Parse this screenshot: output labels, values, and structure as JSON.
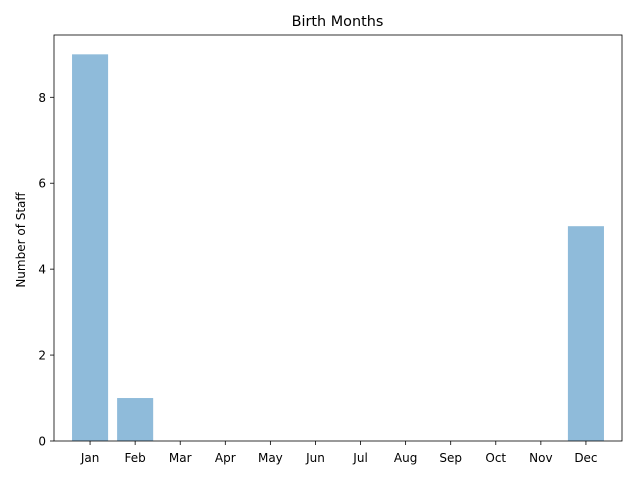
{
  "chart_data": {
    "type": "bar",
    "title": "Birth Months",
    "xlabel": "",
    "ylabel": "Number of Staff",
    "categories": [
      "Jan",
      "Feb",
      "Mar",
      "Apr",
      "May",
      "Jun",
      "Jul",
      "Aug",
      "Sep",
      "Oct",
      "Nov",
      "Dec"
    ],
    "values": [
      9,
      1,
      0,
      0,
      0,
      0,
      0,
      0,
      0,
      0,
      0,
      5
    ],
    "ylim": [
      0,
      9.45
    ],
    "yticks": [
      0,
      2,
      4,
      6,
      8
    ],
    "grid": false,
    "legend": "none",
    "bar_color": "#8fbbda"
  }
}
